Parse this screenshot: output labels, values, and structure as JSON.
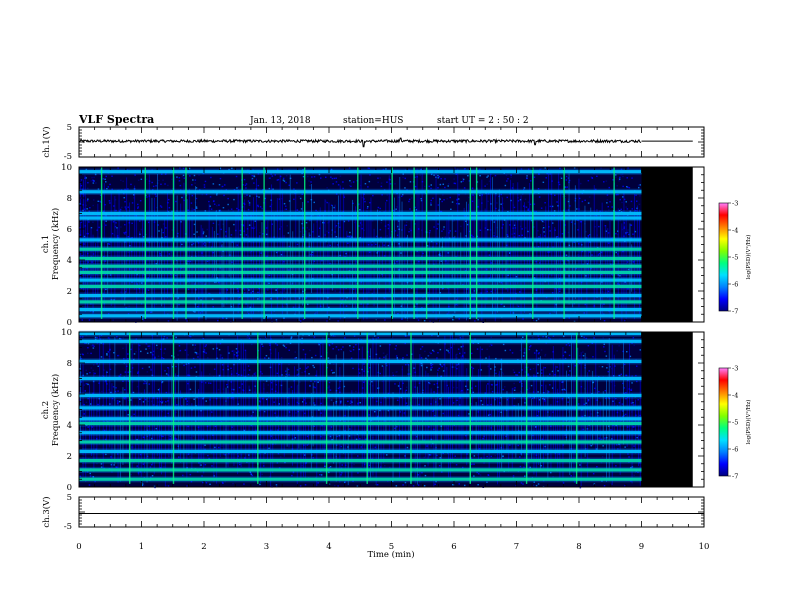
{
  "header": {
    "title": "VLF Spectra",
    "date": "Jan. 13, 2018",
    "station": "station=HUS",
    "start": "start UT =  2 : 50 : 2"
  },
  "colors": {
    "background": "#00003c",
    "ink": "#000000",
    "colormap": [
      "#000080",
      "#0000ff",
      "#0080ff",
      "#00e0ff",
      "#00ff80",
      "#80ff00",
      "#ffff00",
      "#ff8000",
      "#ff0000",
      "#ff80ff"
    ]
  },
  "chart_data": [
    {
      "type": "line",
      "ylabel": "ch.1(V)",
      "ylim": [
        -5,
        5
      ],
      "yticks": [
        "5",
        "-5"
      ],
      "xlim": [
        0,
        10
      ],
      "data_end_min": 9.0,
      "baseline_v": 0.3,
      "spikes": [
        [
          4.55,
          -1.6
        ],
        [
          5.15,
          1.3
        ],
        [
          7.3,
          -0.9
        ]
      ]
    },
    {
      "type": "heatmap",
      "ylabel": "ch.1\nFrequency (kHz)",
      "ylim": [
        0,
        10
      ],
      "yticks": [
        "0",
        "2",
        "4",
        "6",
        "8",
        "10"
      ],
      "xlim": [
        0,
        10
      ],
      "data_end_min": 9.0,
      "fill_end_min": 9.82,
      "colorbar": {
        "label": "log(PSD)(V²/Hz)",
        "range": [
          -7,
          -3
        ],
        "ticks": [
          "-3",
          "-4",
          "-5",
          "-6",
          "-7"
        ]
      },
      "bands_khz": [
        [
          0.4,
          1
        ],
        [
          0.8,
          1
        ],
        [
          1.3,
          2
        ],
        [
          1.7,
          1
        ],
        [
          2.3,
          2
        ],
        [
          2.7,
          1
        ],
        [
          3.2,
          2
        ],
        [
          3.6,
          2
        ],
        [
          4.1,
          2
        ],
        [
          4.7,
          2
        ],
        [
          5.3,
          1
        ],
        [
          6.7,
          1
        ],
        [
          7.0,
          1
        ],
        [
          8.4,
          1
        ],
        [
          9.7,
          1
        ]
      ],
      "bursts_min": [
        0.35,
        1.05,
        1.5,
        1.7,
        2.6,
        2.95,
        3.6,
        4.45,
        5.0,
        5.35,
        5.55,
        6.25,
        6.35,
        7.25,
        7.75,
        8.55
      ]
    },
    {
      "type": "heatmap",
      "ylabel": "ch.2\nFrequency (kHz)",
      "ylim": [
        0,
        10
      ],
      "yticks": [
        "0",
        "2",
        "4",
        "6",
        "8",
        "10"
      ],
      "xlim": [
        0,
        10
      ],
      "data_end_min": 9.0,
      "fill_end_min": 9.82,
      "colorbar": {
        "label": "log(PSD)(V²/Hz)",
        "range": [
          -7,
          -3
        ],
        "ticks": [
          "-3",
          "-4",
          "-5",
          "-6",
          "-7"
        ]
      },
      "bands_khz": [
        [
          0.5,
          2
        ],
        [
          1.1,
          2
        ],
        [
          1.7,
          2
        ],
        [
          2.3,
          1
        ],
        [
          2.9,
          2
        ],
        [
          3.5,
          1
        ],
        [
          4.1,
          2
        ],
        [
          4.4,
          1
        ],
        [
          5.1,
          1
        ],
        [
          5.9,
          1
        ],
        [
          7.0,
          1
        ],
        [
          8.1,
          1
        ],
        [
          9.4,
          1
        ],
        [
          9.9,
          1
        ]
      ],
      "bursts_min": [
        0.8,
        1.5,
        2.85,
        3.95,
        4.6,
        5.3,
        6.25,
        7.15,
        7.95
      ]
    },
    {
      "type": "line",
      "ylabel": "ch.3(V)",
      "ylim": [
        -5,
        5
      ],
      "yticks": [
        "5",
        "-5"
      ],
      "xlim": [
        0,
        10
      ],
      "xlabel": "Time (min)",
      "xticks": [
        "0",
        "1",
        "2",
        "3",
        "4",
        "5",
        "6",
        "7",
        "8",
        "9",
        "10"
      ],
      "baseline_v": -0.5
    }
  ]
}
